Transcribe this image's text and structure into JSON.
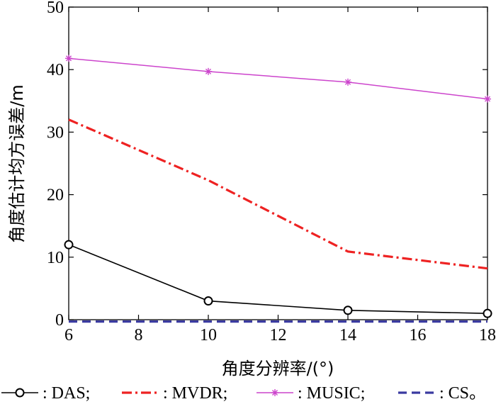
{
  "chart_data": {
    "type": "line",
    "xlabel": "角度分辨率/(°)",
    "ylabel": "角度估计均方误差/m",
    "xlim": [
      6,
      18
    ],
    "ylim": [
      0,
      50
    ],
    "xticks": [
      6,
      8,
      10,
      12,
      14,
      16,
      18
    ],
    "yticks": [
      0,
      10,
      20,
      30,
      40,
      50
    ],
    "x": [
      6,
      10,
      14,
      18
    ],
    "grid": false,
    "legend_position": "bottom",
    "series": [
      {
        "name": "DAS",
        "values": [
          12,
          3,
          1.5,
          1
        ],
        "color": "#000000",
        "style": "solid",
        "marker": "circle"
      },
      {
        "name": "MVDR",
        "values": [
          32,
          22.3,
          10.9,
          8.2
        ],
        "color": "#ee2222",
        "style": "dashdot",
        "marker": "none"
      },
      {
        "name": "MUSIC",
        "values": [
          41.8,
          39.7,
          38,
          35.3
        ],
        "color": "#cc44cc",
        "style": "solid",
        "marker": "asterisk"
      },
      {
        "name": "CS",
        "values": [
          -0.3,
          -0.3,
          -0.3,
          -0.3
        ],
        "color": "#3a3aa0",
        "style": "dashed",
        "marker": "none"
      }
    ],
    "legend": [
      {
        "label": ": DAS;"
      },
      {
        "label": ": MVDR;"
      },
      {
        "label": ": MUSIC;"
      },
      {
        "label": ": CS。"
      }
    ]
  }
}
